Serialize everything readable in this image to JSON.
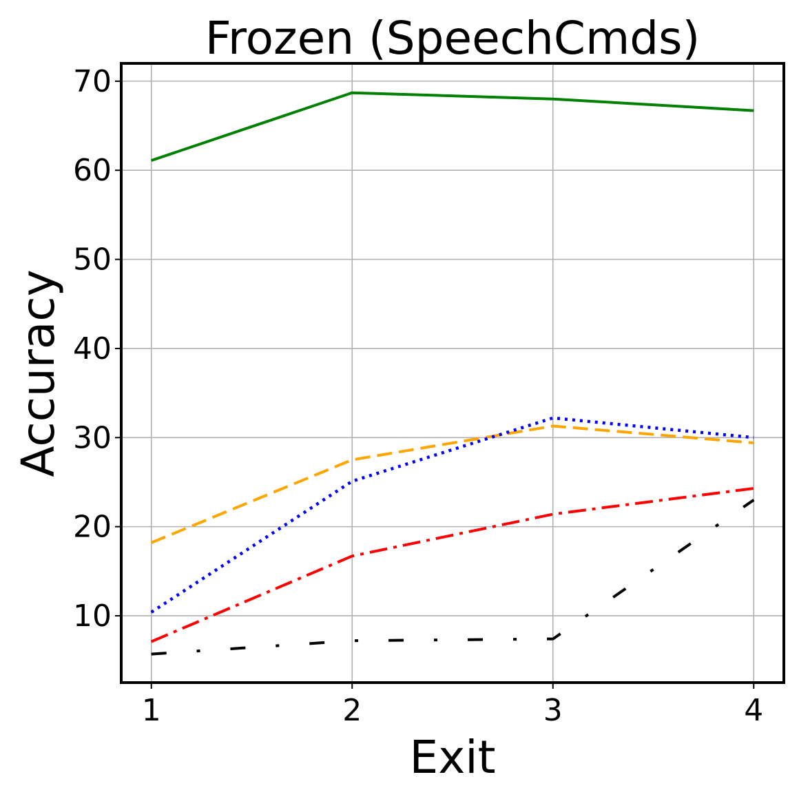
{
  "chart_data": {
    "type": "line",
    "title": "Frozen (SpeechCmds)",
    "xlabel": "Exit",
    "ylabel": "Accuracy",
    "x": [
      1,
      2,
      3,
      4
    ],
    "xlim": [
      0.85,
      4.15
    ],
    "ylim": [
      2.5,
      72
    ],
    "xticks": [
      "1",
      "2",
      "3",
      "4"
    ],
    "yticks": [
      "10",
      "20",
      "30",
      "40",
      "50",
      "60",
      "70"
    ],
    "grid": true,
    "series": [
      {
        "values": [
          61.1,
          68.7,
          68.0,
          66.7
        ],
        "color": "#008000",
        "style": "solid"
      },
      {
        "values": [
          18.2,
          27.5,
          31.3,
          29.4
        ],
        "color": "#ffa500",
        "style": "dashed"
      },
      {
        "values": [
          10.4,
          25.1,
          32.2,
          30.0
        ],
        "color": "#0000ff",
        "style": "dotted"
      },
      {
        "values": [
          7.1,
          16.7,
          21.4,
          24.3
        ],
        "color": "#ff0000",
        "style": "dashdot"
      },
      {
        "values": [
          5.7,
          7.2,
          7.4,
          23.0
        ],
        "color": "#000000",
        "style": "loosely-dashdot"
      }
    ]
  }
}
